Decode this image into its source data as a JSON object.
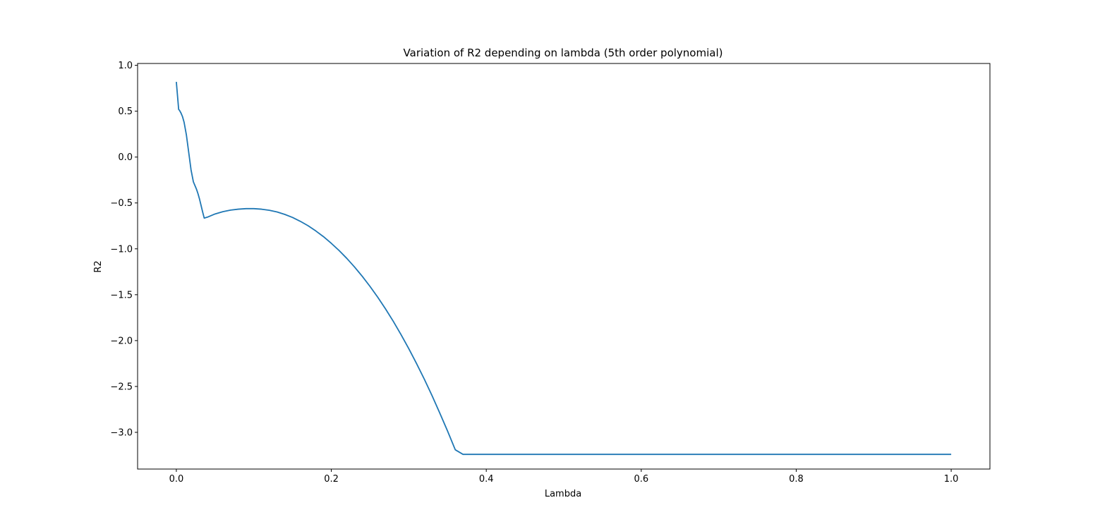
{
  "chart_data": {
    "type": "line",
    "title": "Variation of R2 depending on lambda (5th order polynomial)",
    "xlabel": "Lambda",
    "ylabel": "R2",
    "xlim": [
      -0.05,
      1.05
    ],
    "ylim": [
      -3.4,
      1.02
    ],
    "xticks": [
      0.0,
      0.2,
      0.4,
      0.6,
      0.8,
      1.0
    ],
    "xtick_labels": [
      "0.0",
      "0.2",
      "0.4",
      "0.6",
      "0.8",
      "1.0"
    ],
    "yticks": [
      1.0,
      0.5,
      0.0,
      -0.5,
      -1.0,
      -1.5,
      -2.0,
      -2.5,
      -3.0
    ],
    "ytick_labels": [
      "1.0",
      "0.5",
      "0.0",
      "−0.5",
      "−1.0",
      "−1.5",
      "−2.0",
      "−2.5",
      "−3.0"
    ],
    "grid": false,
    "legend": false,
    "series": [
      {
        "color": "#1f77b4",
        "x": [
          0.0,
          0.002,
          0.003,
          0.004,
          0.006,
          0.008,
          0.01,
          0.013,
          0.016,
          0.019,
          0.022,
          0.024,
          0.026,
          0.028,
          0.03,
          0.032,
          0.034,
          0.036,
          0.038,
          0.04,
          0.05,
          0.06,
          0.07,
          0.08,
          0.09,
          0.1,
          0.11,
          0.12,
          0.13,
          0.14,
          0.15,
          0.16,
          0.17,
          0.18,
          0.19,
          0.2,
          0.21,
          0.22,
          0.23,
          0.24,
          0.25,
          0.26,
          0.27,
          0.28,
          0.29,
          0.3,
          0.31,
          0.32,
          0.33,
          0.34,
          0.35,
          0.36,
          0.37,
          0.38,
          0.39,
          0.395,
          0.4,
          0.5,
          0.6,
          0.7,
          0.8,
          0.9,
          1.0
        ],
        "y": [
          0.82,
          0.62,
          0.52,
          0.51,
          0.48,
          0.44,
          0.38,
          0.24,
          0.05,
          -0.14,
          -0.27,
          -0.31,
          -0.35,
          -0.4,
          -0.46,
          -0.53,
          -0.6,
          -0.665,
          -0.66,
          -0.655,
          -0.62,
          -0.595,
          -0.578,
          -0.568,
          -0.562,
          -0.562,
          -0.568,
          -0.58,
          -0.598,
          -0.625,
          -0.658,
          -0.7,
          -0.748,
          -0.805,
          -0.868,
          -0.94,
          -1.018,
          -1.104,
          -1.198,
          -1.3,
          -1.41,
          -1.528,
          -1.655,
          -1.79,
          -1.935,
          -2.088,
          -2.25,
          -2.42,
          -2.6,
          -2.79,
          -2.985,
          -3.19,
          -3.24,
          -3.24,
          -3.24,
          -3.24,
          -3.24,
          -3.24,
          -3.24,
          -3.24,
          -3.24,
          -3.24,
          -3.24
        ]
      }
    ]
  }
}
